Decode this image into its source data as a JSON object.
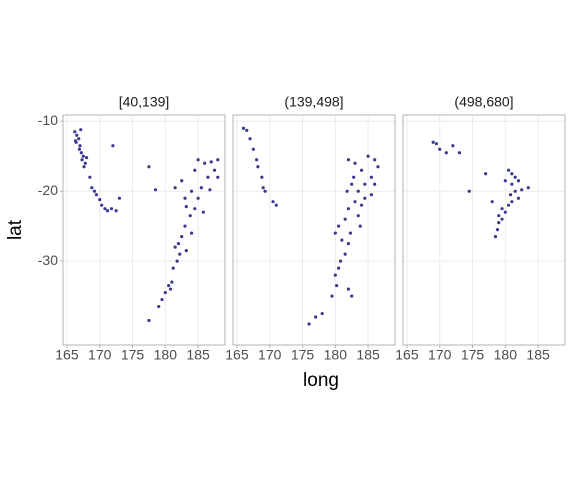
{
  "chart_data": {
    "type": "scatter",
    "xlabel": "long",
    "ylabel": "lat",
    "color": "#3a3a8f",
    "xlim": [
      164.4,
      189.1
    ],
    "ylim": [
      -42,
      -9.1
    ],
    "xticks": [
      165,
      170,
      175,
      180,
      185
    ],
    "yticks": [
      -10,
      -20,
      -30
    ],
    "grid": true,
    "facets": [
      {
        "title": "[40,139]",
        "x": [
          166.2,
          166.5,
          166.8,
          166.4,
          167,
          166.9,
          167.2,
          167.5,
          167.3,
          167.8,
          167.6,
          168,
          166.3,
          167.1,
          168.5,
          168.8,
          169.2,
          169.5,
          170,
          170.3,
          170.8,
          171.2,
          171.8,
          172.5,
          173,
          172,
          177.5,
          178.5,
          181.5,
          182.5,
          183,
          184,
          184.5,
          185,
          186,
          187,
          188,
          186.5,
          185.5,
          185,
          184.5,
          183.8,
          183.2,
          183,
          182.5,
          182,
          181.5,
          182.2,
          181.8,
          181.2,
          181,
          180.5,
          180,
          179.5,
          179,
          177.5,
          187.5,
          188,
          186.8,
          185.8,
          184,
          183.2,
          180.8
        ],
        "y": [
          -11.5,
          -12,
          -12.5,
          -13,
          -13.5,
          -14,
          -14.5,
          -15,
          -15.5,
          -16,
          -16.5,
          -15.2,
          -12.8,
          -11.2,
          -18,
          -19.5,
          -20,
          -20.5,
          -21.2,
          -22,
          -22.5,
          -22.8,
          -22.5,
          -22.8,
          -21,
          -13.5,
          -16.5,
          -19.8,
          -19.5,
          -18.5,
          -21,
          -20,
          -17,
          -15.5,
          -16,
          -15.8,
          -15.5,
          -18,
          -19.5,
          -21,
          -22.5,
          -23.5,
          -22.2,
          -25,
          -26.5,
          -27.5,
          -28,
          -29,
          -30,
          -31,
          -33,
          -33.5,
          -34.5,
          -35.5,
          -36.5,
          -38.5,
          -17,
          -18,
          -19.8,
          -23,
          -26,
          -28.5,
          -34
        ]
      },
      {
        "title": "(139,498]",
        "x": [
          166,
          166.5,
          167,
          167.5,
          168,
          168.2,
          168.8,
          169,
          169.3,
          170.5,
          171,
          182,
          183,
          184,
          185,
          186,
          186.5,
          185.5,
          184.5,
          183.5,
          182.5,
          183,
          184,
          182,
          181.5,
          180.5,
          180,
          181,
          182,
          181.5,
          180.8,
          180.5,
          180,
          180.2,
          182,
          182.5,
          179.5,
          178,
          177,
          176,
          183.5,
          184.5,
          185.5,
          186,
          181.8,
          182.8,
          183.8,
          182.3
        ],
        "y": [
          -11,
          -11.3,
          -12.5,
          -14,
          -15.5,
          -16.5,
          -18,
          -19.5,
          -20,
          -21.5,
          -22,
          -15.5,
          -16,
          -17,
          -15,
          -15.5,
          -16.5,
          -18,
          -19,
          -20,
          -19,
          -21.5,
          -22,
          -22.5,
          -24,
          -25,
          -26,
          -27,
          -27.5,
          -29,
          -30,
          -31,
          -32,
          -33.5,
          -34,
          -35,
          -35,
          -37.5,
          -38,
          -39,
          -23.5,
          -21,
          -20.5,
          -19,
          -20,
          -18,
          -25,
          -26
        ]
      },
      {
        "title": "(498,680]",
        "x": [
          169,
          169.5,
          170,
          171,
          172,
          173,
          174.5,
          177,
          180.5,
          181,
          181.5,
          182,
          181,
          180,
          181.5,
          182,
          181,
          180.5,
          180,
          179.5,
          179,
          178.8,
          178.5,
          179.5,
          180.8,
          183.5,
          182.5,
          179,
          178
        ],
        "y": [
          -13,
          -13.2,
          -14,
          -14.5,
          -13.5,
          -14.5,
          -20,
          -17.5,
          -17,
          -17.5,
          -18,
          -18.5,
          -19,
          -18.5,
          -20,
          -21,
          -21.5,
          -22,
          -23,
          -24,
          -24.5,
          -25.5,
          -26.5,
          -22.5,
          -20.5,
          -19.5,
          -19.8,
          -23.5,
          -21.5
        ]
      }
    ]
  }
}
